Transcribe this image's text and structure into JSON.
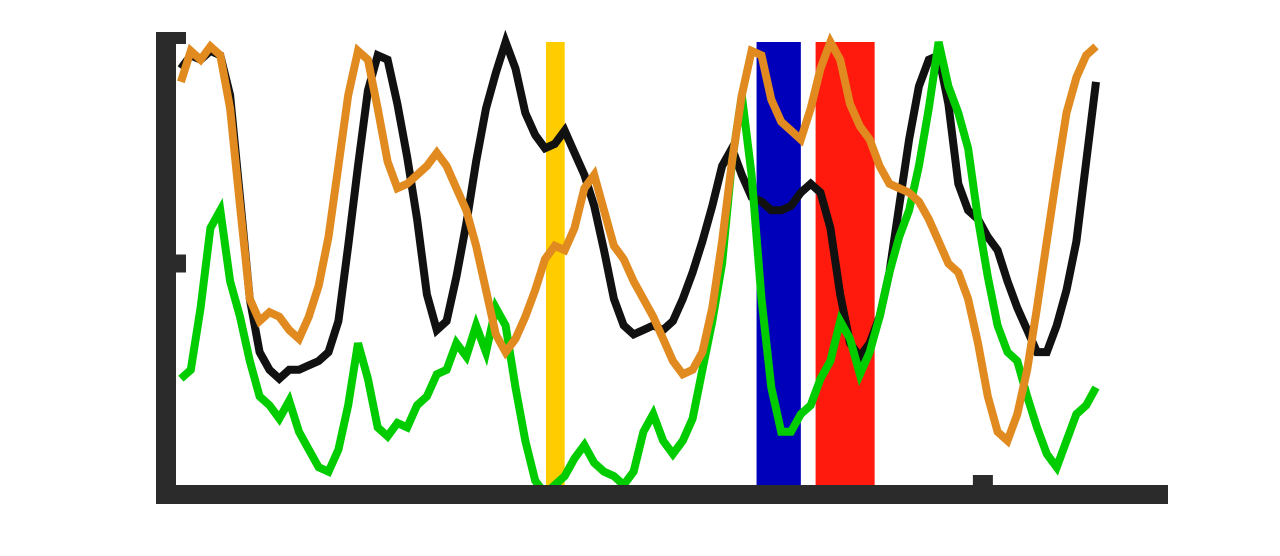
{
  "chart_data": {
    "type": "line",
    "title": "",
    "xlabel": "",
    "ylabel": "",
    "xlim": [
      0,
      100
    ],
    "ylim": [
      0,
      100
    ],
    "grid": false,
    "legend": "none",
    "axis_color": "#2b2b2b",
    "x_major_tick": 82,
    "y_major_tick": 50,
    "bands": [
      {
        "x0": 37.6,
        "x1": 39.5,
        "color": "#ffcc00"
      },
      {
        "x0": 59.0,
        "x1": 63.5,
        "color": "#0000bb"
      },
      {
        "x0": 65.0,
        "x1": 71.0,
        "color": "#ff1a0d"
      }
    ],
    "series": [
      {
        "color": "#111111",
        "points": [
          [
            0.5,
            94
          ],
          [
            1.5,
            97
          ],
          [
            2.5,
            96
          ],
          [
            3.5,
            98
          ],
          [
            4.5,
            97
          ],
          [
            5.5,
            88
          ],
          [
            6.5,
            65
          ],
          [
            7.5,
            42
          ],
          [
            8.5,
            30
          ],
          [
            9.5,
            26
          ],
          [
            10.5,
            24
          ],
          [
            11.5,
            26
          ],
          [
            12.5,
            26
          ],
          [
            13.5,
            27
          ],
          [
            14.5,
            28
          ],
          [
            15.5,
            30
          ],
          [
            16.5,
            37
          ],
          [
            17.5,
            54
          ],
          [
            18.5,
            72
          ],
          [
            19.5,
            89
          ],
          [
            20.5,
            97
          ],
          [
            21.5,
            96
          ],
          [
            22.5,
            86
          ],
          [
            23.5,
            74
          ],
          [
            24.5,
            60
          ],
          [
            25.5,
            43
          ],
          [
            26.5,
            35
          ],
          [
            27.5,
            37
          ],
          [
            28.5,
            47
          ],
          [
            29.5,
            59
          ],
          [
            30.5,
            73
          ],
          [
            31.5,
            85
          ],
          [
            32.5,
            93
          ],
          [
            33.5,
            100
          ],
          [
            34.5,
            94
          ],
          [
            35.5,
            84
          ],
          [
            36.5,
            79
          ],
          [
            37.5,
            76
          ],
          [
            38.5,
            77
          ],
          [
            39.5,
            80
          ],
          [
            40.5,
            75
          ],
          [
            41.5,
            70
          ],
          [
            42.5,
            63
          ],
          [
            43.5,
            53
          ],
          [
            44.5,
            42
          ],
          [
            45.5,
            36
          ],
          [
            46.5,
            34
          ],
          [
            47.5,
            35
          ],
          [
            48.5,
            36
          ],
          [
            49.5,
            35
          ],
          [
            50.5,
            37
          ],
          [
            51.5,
            42
          ],
          [
            52.5,
            48
          ],
          [
            53.5,
            55
          ],
          [
            54.5,
            63
          ],
          [
            55.5,
            72
          ],
          [
            56.5,
            76
          ],
          [
            57.5,
            70
          ],
          [
            58.5,
            65
          ],
          [
            59.5,
            64
          ],
          [
            60.5,
            62
          ],
          [
            61.5,
            62
          ],
          [
            62.5,
            63
          ],
          [
            63.5,
            66
          ],
          [
            64.5,
            68
          ],
          [
            65.5,
            66
          ],
          [
            66.5,
            58
          ],
          [
            67.5,
            43
          ],
          [
            68.5,
            32
          ],
          [
            69.5,
            29
          ],
          [
            70.5,
            32
          ],
          [
            71.5,
            38
          ],
          [
            72.5,
            48
          ],
          [
            73.5,
            63
          ],
          [
            74.5,
            78
          ],
          [
            75.5,
            90
          ],
          [
            76.5,
            96
          ],
          [
            77.5,
            97
          ],
          [
            78.5,
            86
          ],
          [
            79.5,
            68
          ],
          [
            80.5,
            62
          ],
          [
            81.5,
            60
          ],
          [
            82.5,
            56
          ],
          [
            83.5,
            53
          ],
          [
            84.5,
            46
          ],
          [
            85.5,
            40
          ],
          [
            86.5,
            35
          ],
          [
            87.5,
            30
          ],
          [
            88.5,
            30
          ],
          [
            89.5,
            36
          ],
          [
            90.5,
            44
          ],
          [
            91.5,
            55
          ],
          [
            92.5,
            73
          ],
          [
            93.5,
            91
          ]
        ]
      },
      {
        "color": "#00cc00",
        "points": [
          [
            0.5,
            24
          ],
          [
            1.5,
            26
          ],
          [
            2.5,
            40
          ],
          [
            3.5,
            58
          ],
          [
            4.5,
            62
          ],
          [
            5.5,
            46
          ],
          [
            6.5,
            38
          ],
          [
            7.5,
            28
          ],
          [
            8.5,
            20
          ],
          [
            9.5,
            18
          ],
          [
            10.5,
            15
          ],
          [
            11.5,
            19
          ],
          [
            12.5,
            12
          ],
          [
            13.5,
            8
          ],
          [
            14.5,
            4
          ],
          [
            15.5,
            3
          ],
          [
            16.5,
            8
          ],
          [
            17.5,
            18
          ],
          [
            18.5,
            32
          ],
          [
            19.5,
            24
          ],
          [
            20.5,
            13
          ],
          [
            21.5,
            11
          ],
          [
            22.5,
            14
          ],
          [
            23.5,
            13
          ],
          [
            24.5,
            18
          ],
          [
            25.5,
            20
          ],
          [
            26.5,
            25
          ],
          [
            27.5,
            26
          ],
          [
            28.5,
            32
          ],
          [
            29.5,
            29
          ],
          [
            30.5,
            36
          ],
          [
            31.5,
            30
          ],
          [
            32.5,
            40
          ],
          [
            33.5,
            36
          ],
          [
            34.5,
            22
          ],
          [
            35.5,
            10
          ],
          [
            36.5,
            1
          ],
          [
            37.5,
            -2
          ],
          [
            38.5,
            0
          ],
          [
            39.5,
            2
          ],
          [
            40.5,
            6
          ],
          [
            41.5,
            9
          ],
          [
            42.5,
            5
          ],
          [
            43.5,
            3
          ],
          [
            44.5,
            2
          ],
          [
            45.5,
            0
          ],
          [
            46.5,
            3
          ],
          [
            47.5,
            12
          ],
          [
            48.5,
            16
          ],
          [
            49.5,
            10
          ],
          [
            50.5,
            7
          ],
          [
            51.5,
            10
          ],
          [
            52.5,
            15
          ],
          [
            53.5,
            26
          ],
          [
            54.5,
            37
          ],
          [
            55.5,
            50
          ],
          [
            56.5,
            73
          ],
          [
            57.5,
            88
          ],
          [
            58.5,
            70
          ],
          [
            59.5,
            42
          ],
          [
            60.5,
            22
          ],
          [
            61.5,
            12
          ],
          [
            62.5,
            12
          ],
          [
            63.5,
            16
          ],
          [
            64.5,
            18
          ],
          [
            65.5,
            24
          ],
          [
            66.5,
            28
          ],
          [
            67.5,
            37
          ],
          [
            68.5,
            33
          ],
          [
            69.5,
            25
          ],
          [
            70.5,
            30
          ],
          [
            71.5,
            38
          ],
          [
            72.5,
            48
          ],
          [
            73.5,
            56
          ],
          [
            74.5,
            62
          ],
          [
            75.5,
            72
          ],
          [
            76.5,
            85
          ],
          [
            77.5,
            100
          ],
          [
            78.5,
            90
          ],
          [
            79.5,
            84
          ],
          [
            80.5,
            76
          ],
          [
            81.5,
            60
          ],
          [
            82.5,
            47
          ],
          [
            83.5,
            36
          ],
          [
            84.5,
            30
          ],
          [
            85.5,
            28
          ],
          [
            86.5,
            20
          ],
          [
            87.5,
            13
          ],
          [
            88.5,
            7
          ],
          [
            89.5,
            4
          ],
          [
            90.5,
            10
          ],
          [
            91.5,
            16
          ],
          [
            92.5,
            18
          ],
          [
            93.5,
            22
          ]
        ]
      },
      {
        "color": "#e08a20",
        "points": [
          [
            0.5,
            91
          ],
          [
            1.5,
            98
          ],
          [
            2.5,
            96
          ],
          [
            3.5,
            99
          ],
          [
            4.5,
            97
          ],
          [
            5.5,
            85
          ],
          [
            6.5,
            63
          ],
          [
            7.5,
            42
          ],
          [
            8.5,
            37
          ],
          [
            9.5,
            39
          ],
          [
            10.5,
            38
          ],
          [
            11.5,
            35
          ],
          [
            12.5,
            33
          ],
          [
            13.5,
            38
          ],
          [
            14.5,
            45
          ],
          [
            15.5,
            56
          ],
          [
            16.5,
            72
          ],
          [
            17.5,
            88
          ],
          [
            18.5,
            98
          ],
          [
            19.5,
            96
          ],
          [
            20.5,
            85
          ],
          [
            21.5,
            73
          ],
          [
            22.5,
            67
          ],
          [
            23.5,
            68
          ],
          [
            24.5,
            70
          ],
          [
            25.5,
            72
          ],
          [
            26.5,
            75
          ],
          [
            27.5,
            72
          ],
          [
            28.5,
            67
          ],
          [
            29.5,
            62
          ],
          [
            30.5,
            54
          ],
          [
            31.5,
            44
          ],
          [
            32.5,
            34
          ],
          [
            33.5,
            30
          ],
          [
            34.5,
            33
          ],
          [
            35.5,
            38
          ],
          [
            36.5,
            44
          ],
          [
            37.5,
            51
          ],
          [
            38.5,
            54
          ],
          [
            39.5,
            53
          ],
          [
            40.5,
            58
          ],
          [
            41.5,
            67
          ],
          [
            42.5,
            70
          ],
          [
            43.5,
            62
          ],
          [
            44.5,
            54
          ],
          [
            45.5,
            51
          ],
          [
            46.5,
            46
          ],
          [
            47.5,
            42
          ],
          [
            48.5,
            38
          ],
          [
            49.5,
            33
          ],
          [
            50.5,
            28
          ],
          [
            51.5,
            25
          ],
          [
            52.5,
            26
          ],
          [
            53.5,
            30
          ],
          [
            54.5,
            40
          ],
          [
            55.5,
            55
          ],
          [
            56.5,
            73
          ],
          [
            57.5,
            88
          ],
          [
            58.5,
            98
          ],
          [
            59.5,
            97
          ],
          [
            60.5,
            87
          ],
          [
            61.5,
            82
          ],
          [
            62.5,
            80
          ],
          [
            63.5,
            78
          ],
          [
            64.5,
            85
          ],
          [
            65.5,
            94
          ],
          [
            66.5,
            100
          ],
          [
            67.5,
            96
          ],
          [
            68.5,
            86
          ],
          [
            69.5,
            81
          ],
          [
            70.5,
            78
          ],
          [
            71.5,
            72
          ],
          [
            72.5,
            68
          ],
          [
            73.5,
            67
          ],
          [
            74.5,
            66
          ],
          [
            75.5,
            64
          ],
          [
            76.5,
            60
          ],
          [
            77.5,
            55
          ],
          [
            78.5,
            50
          ],
          [
            79.5,
            48
          ],
          [
            80.5,
            42
          ],
          [
            81.5,
            32
          ],
          [
            82.5,
            20
          ],
          [
            83.5,
            12
          ],
          [
            84.5,
            10
          ],
          [
            85.5,
            16
          ],
          [
            86.5,
            26
          ],
          [
            87.5,
            40
          ],
          [
            88.5,
            55
          ],
          [
            89.5,
            70
          ],
          [
            90.5,
            84
          ],
          [
            91.5,
            92
          ],
          [
            92.5,
            97
          ],
          [
            93.5,
            99
          ]
        ]
      }
    ]
  }
}
